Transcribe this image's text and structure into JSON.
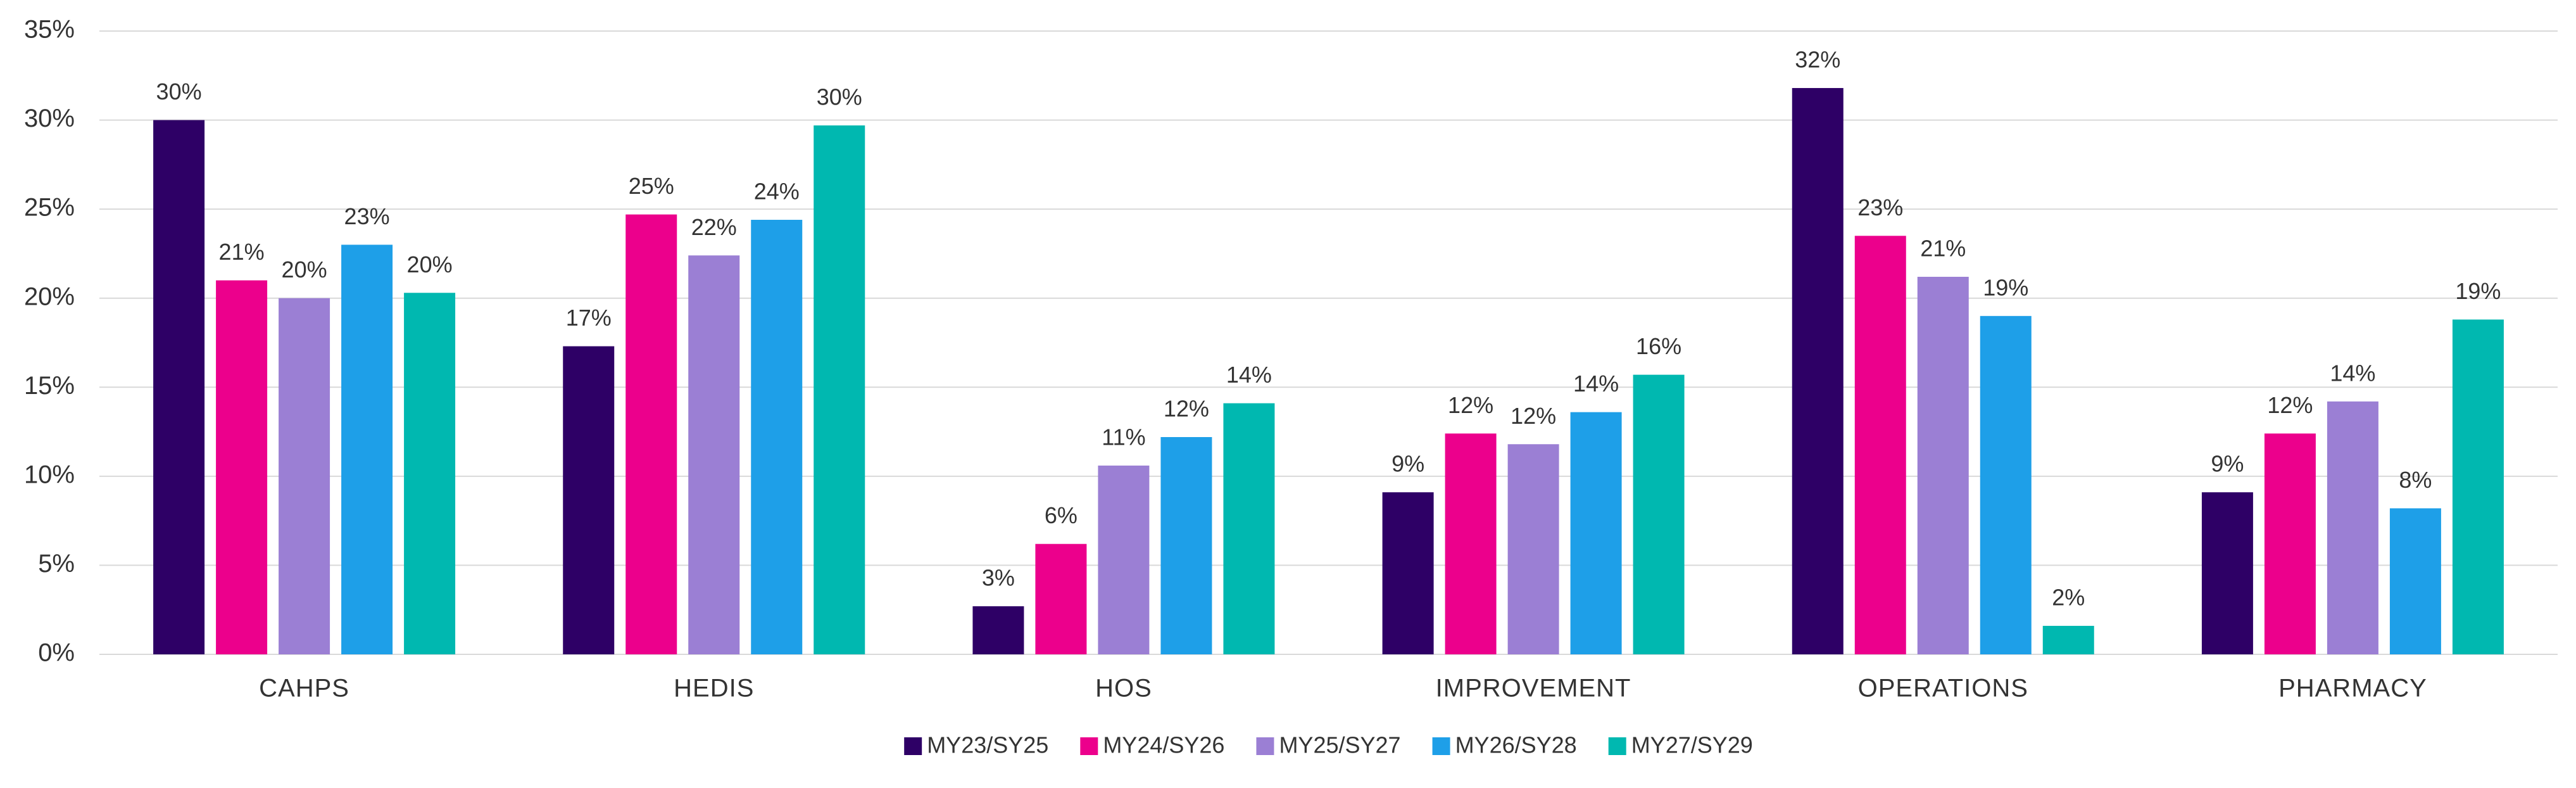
{
  "chart_data": {
    "type": "bar",
    "categories": [
      "CAHPS",
      "HEDIS",
      "HOS",
      "IMPROVEMENT",
      "OPERATIONS",
      "PHARMACY"
    ],
    "series": [
      {
        "name": "MY23/SY25",
        "color": "#2e0066",
        "values": [
          30,
          17.3,
          2.7,
          9.1,
          31.8,
          9.1
        ],
        "value_labels": [
          "30%",
          "17%",
          "3%",
          "9%",
          "32%",
          "9%"
        ]
      },
      {
        "name": "MY24/SY26",
        "color": "#ec008c",
        "values": [
          21,
          24.7,
          6.2,
          12.4,
          23.5,
          12.4
        ],
        "value_labels": [
          "21%",
          "25%",
          "6%",
          "12%",
          "23%",
          "12%"
        ]
      },
      {
        "name": "MY25/SY27",
        "color": "#9b7fd4",
        "values": [
          20,
          22.4,
          10.6,
          11.8,
          21.2,
          14.2
        ],
        "value_labels": [
          "20%",
          "22%",
          "11%",
          "12%",
          "21%",
          "14%"
        ]
      },
      {
        "name": "MY26/SY28",
        "color": "#1e9fe8",
        "values": [
          23,
          24.4,
          12.2,
          13.6,
          19,
          8.2
        ],
        "value_labels": [
          "23%",
          "24%",
          "12%",
          "14%",
          "19%",
          "8%"
        ]
      },
      {
        "name": "MY27/SY29",
        "color": "#00b8b0",
        "values": [
          20.3,
          29.7,
          14.1,
          15.7,
          1.6,
          18.8
        ],
        "value_labels": [
          "20%",
          "30%",
          "14%",
          "16%",
          "2%",
          "19%"
        ]
      }
    ],
    "ylim": [
      0,
      35
    ],
    "yticks": [
      {
        "value": 0,
        "label": "0%"
      },
      {
        "value": 5,
        "label": "5%"
      },
      {
        "value": 10,
        "label": "10%"
      },
      {
        "value": 15,
        "label": "15%"
      },
      {
        "value": 20,
        "label": "20%"
      },
      {
        "value": 25,
        "label": "25%"
      },
      {
        "value": 30,
        "label": "30%"
      },
      {
        "value": 35,
        "label": "35%"
      }
    ],
    "grid": true,
    "legend": "bottom"
  }
}
